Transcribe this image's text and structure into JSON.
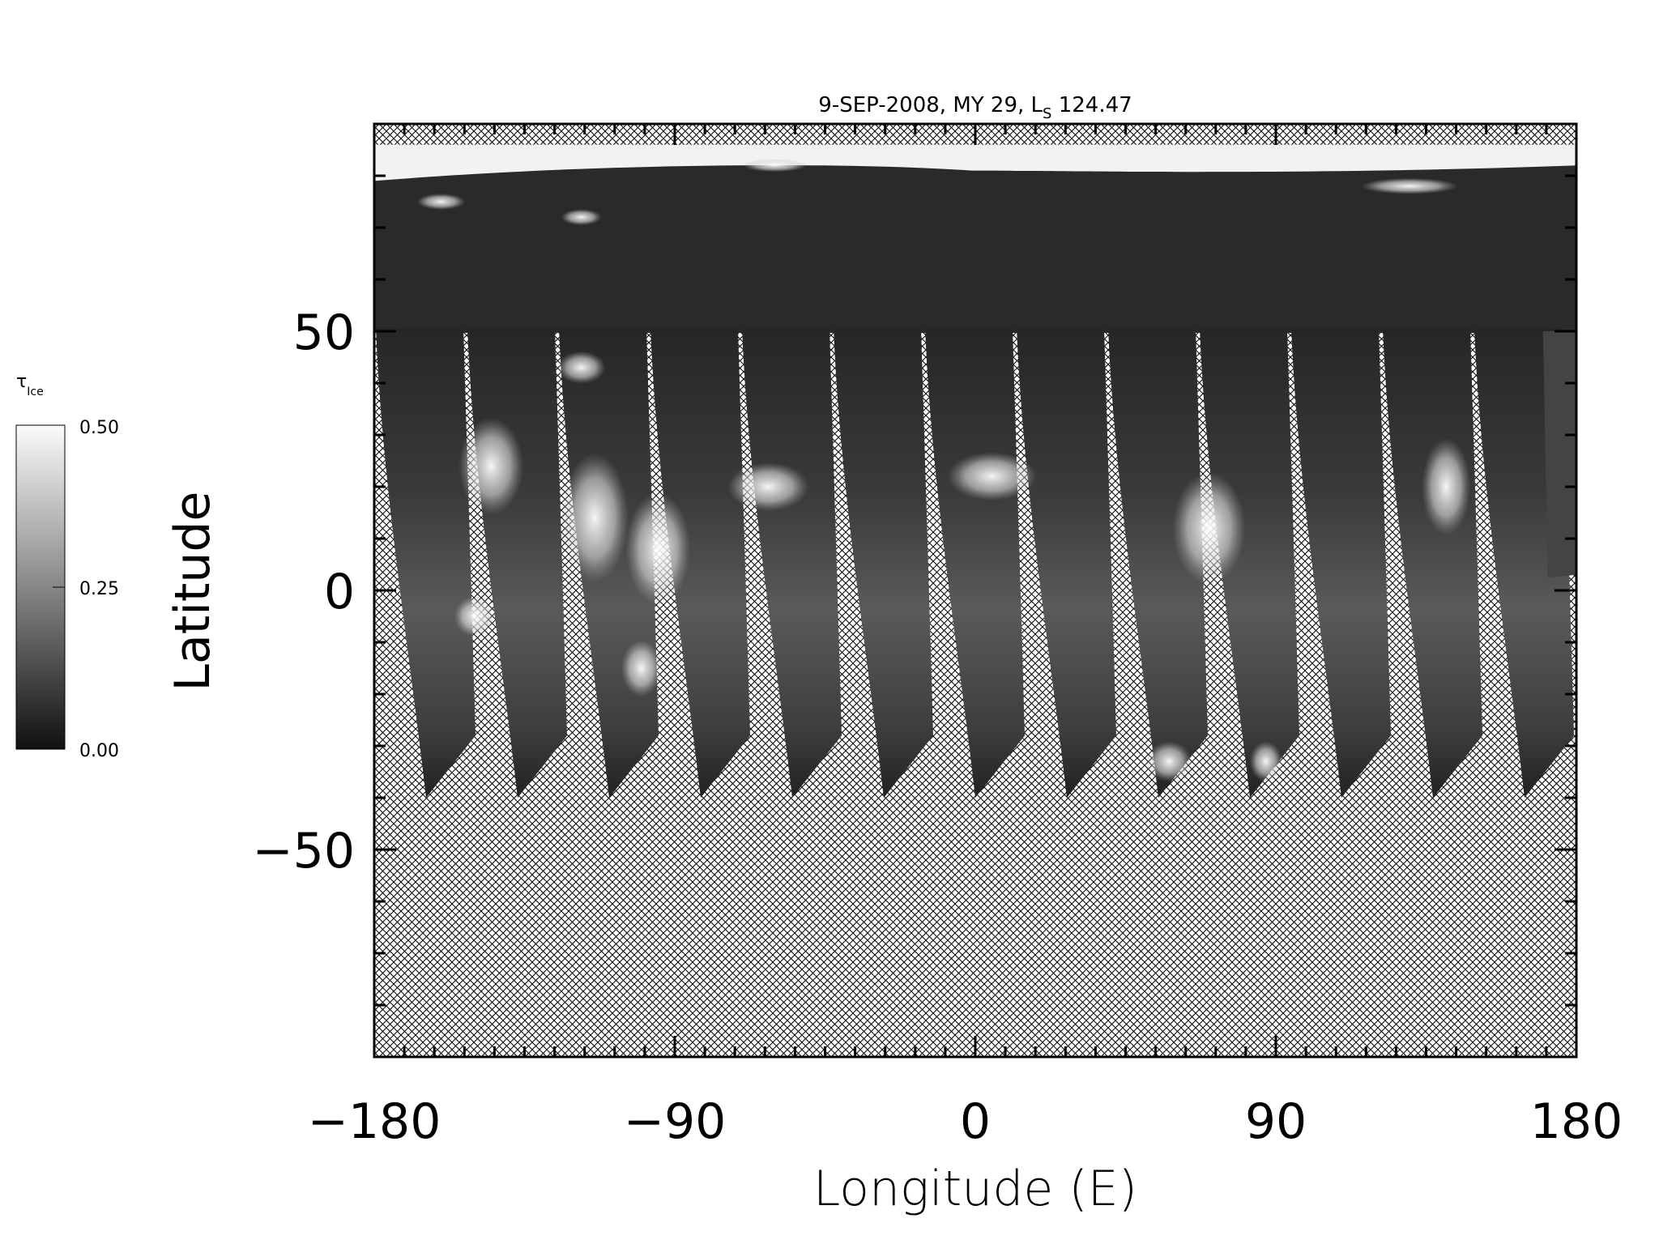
{
  "chart_data": {
    "type": "heatmap",
    "title": "9-SEP-2008, MY 29,  L",
    "title_subscript": "S",
    "title_suffix": " 124.47",
    "xlabel": "Longitude (E)",
    "ylabel": "Latitude",
    "xlim": [
      -180,
      180
    ],
    "ylim": [
      -90,
      90
    ],
    "x_ticks": [
      -180,
      -90,
      0,
      90,
      180
    ],
    "x_tick_labels": [
      "−180",
      "−90",
      "0",
      "90",
      "180"
    ],
    "y_ticks": [
      -50,
      0,
      50
    ],
    "y_tick_labels": [
      "−50",
      "0",
      "50"
    ],
    "x_minor_step": 9,
    "y_minor_step": 10,
    "no_data_fill": "crosshatch",
    "colormap": "grayscale",
    "colorbar": {
      "label": "τ",
      "label_subscript": "Ice",
      "range": [
        0.0,
        0.5
      ],
      "ticks": [
        "0.00",
        "0.25",
        "0.50"
      ]
    },
    "coverage": {
      "polar_cap_latitude": 82,
      "continuous_coverage_south_limit_lat": 50,
      "swath_south_limit_lat": -40,
      "swath_count": 13
    }
  }
}
